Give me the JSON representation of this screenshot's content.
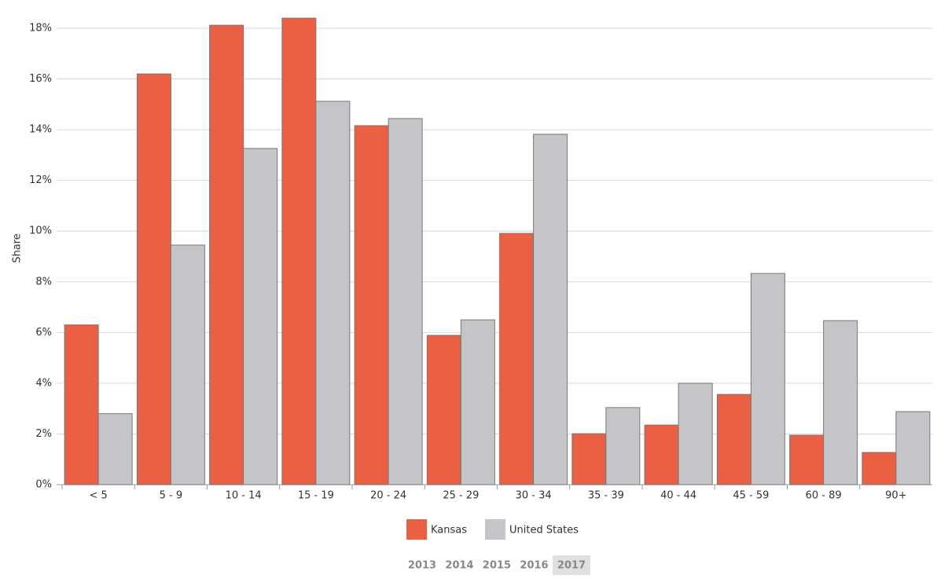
{
  "chart_data": {
    "type": "bar",
    "y_label": "Share",
    "categories": [
      "< 5",
      "5 - 9",
      "10 - 14",
      "15 - 19",
      "20 - 24",
      "25 - 29",
      "30 - 34",
      "35 - 39",
      "40 - 44",
      "45 - 59",
      "60 - 89",
      "90+"
    ],
    "series": [
      {
        "name": "Kansas",
        "color": "#eb5f43",
        "values": [
          6.3,
          16.2,
          18.12,
          18.4,
          14.16,
          5.89,
          9.91,
          2.01,
          2.35,
          3.56,
          1.95,
          1.27
        ]
      },
      {
        "name": "United States",
        "color": "#c4c5c9",
        "values": [
          2.8,
          9.45,
          13.26,
          15.12,
          14.44,
          6.5,
          13.82,
          3.04,
          4.0,
          8.33,
          6.47,
          2.88
        ]
      }
    ],
    "ylim": [
      0,
      18.4
    ],
    "yticks": [
      {
        "value": 0,
        "label": "0%"
      },
      {
        "value": 2,
        "label": "2%"
      },
      {
        "value": 4,
        "label": "4%"
      },
      {
        "value": 6,
        "label": "6%"
      },
      {
        "value": 8,
        "label": "8%"
      },
      {
        "value": 10,
        "label": "10%"
      },
      {
        "value": 12,
        "label": "12%"
      },
      {
        "value": 14,
        "label": "14%"
      },
      {
        "value": 16,
        "label": "16%"
      },
      {
        "value": 18,
        "label": "18%"
      }
    ],
    "grid": true
  },
  "year_selector": {
    "years": [
      "2013",
      "2014",
      "2015",
      "2016",
      "2017"
    ],
    "selected": "2017"
  }
}
